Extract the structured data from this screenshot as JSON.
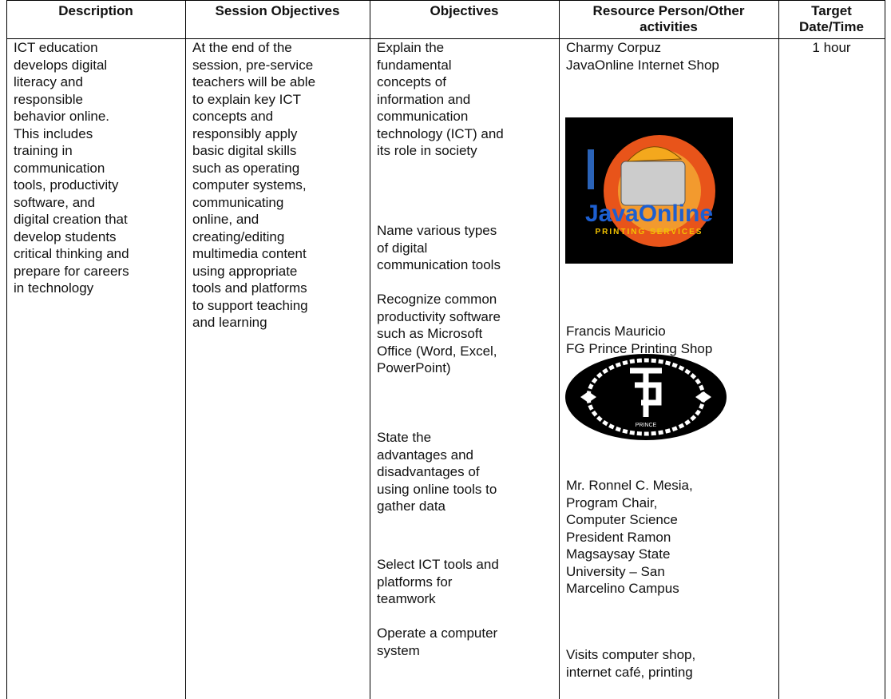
{
  "table": {
    "header": [
      [
        "Description"
      ],
      [
        "Session Objectives"
      ],
      [
        "Objectives"
      ],
      [
        "Resource Person/Other",
        "activities"
      ],
      [
        "Target",
        "Date/Time"
      ]
    ],
    "rows": [
      [
        [
          [
            "ICT education",
            "develops digital",
            "literacy and",
            "responsible",
            "behavior online.",
            "This includes",
            "training in",
            "communication",
            "tools, productivity",
            "software, and",
            "digital creation that",
            "develop students",
            "critical thinking and",
            "prepare for careers",
            "in technology"
          ]
        ],
        [
          [
            "At the end of the",
            "session, pre-service",
            "teachers will be able",
            "to explain key ICT",
            "concepts and",
            "responsibly apply",
            "basic digital skills",
            "such as operating",
            "computer systems,",
            "communicating",
            "online, and",
            "creating/editing",
            "multimedia content",
            "using appropriate",
            "tools and platforms",
            "to support teaching",
            "and learning"
          ]
        ],
        [
          [
            "Explain the",
            "fundamental",
            "concepts of",
            "information and",
            "communication",
            "technology (ICT) and",
            "its role in society"
          ],
          [
            "Name various types",
            "of digital",
            "communication tools"
          ],
          [
            "Recognize common",
            "productivity software",
            "such as Microsoft",
            "Office (Word, Excel,",
            "PowerPoint)"
          ],
          [
            "State the",
            "advantages and",
            "disadvantages of",
            "using online tools to",
            "gather data"
          ],
          [
            "Select ICT tools and",
            "platforms for",
            "teamwork"
          ],
          [
            "Operate a computer",
            "system"
          ]
        ],
        [
          [
            "Charmy Corpuz",
            "JavaOnline Internet Shop"
          ],
          [
            "JavaOnline",
            "PRINTING SERVICES"
          ],
          [
            "Francis Mauricio",
            "FG Prince Printing Shop"
          ],
          [
            "PRINCE"
          ],
          [
            "Mr. Ronnel C. Mesia,",
            "Program Chair,",
            "Computer Science",
            "President Ramon",
            "Magsaysay State",
            "University – San",
            "Marcelino Campus"
          ],
          [
            "Visits computer shop,",
            "internet café, printing"
          ]
        ],
        [
          [
            "1 hour"
          ]
        ]
      ]
    ]
  }
}
